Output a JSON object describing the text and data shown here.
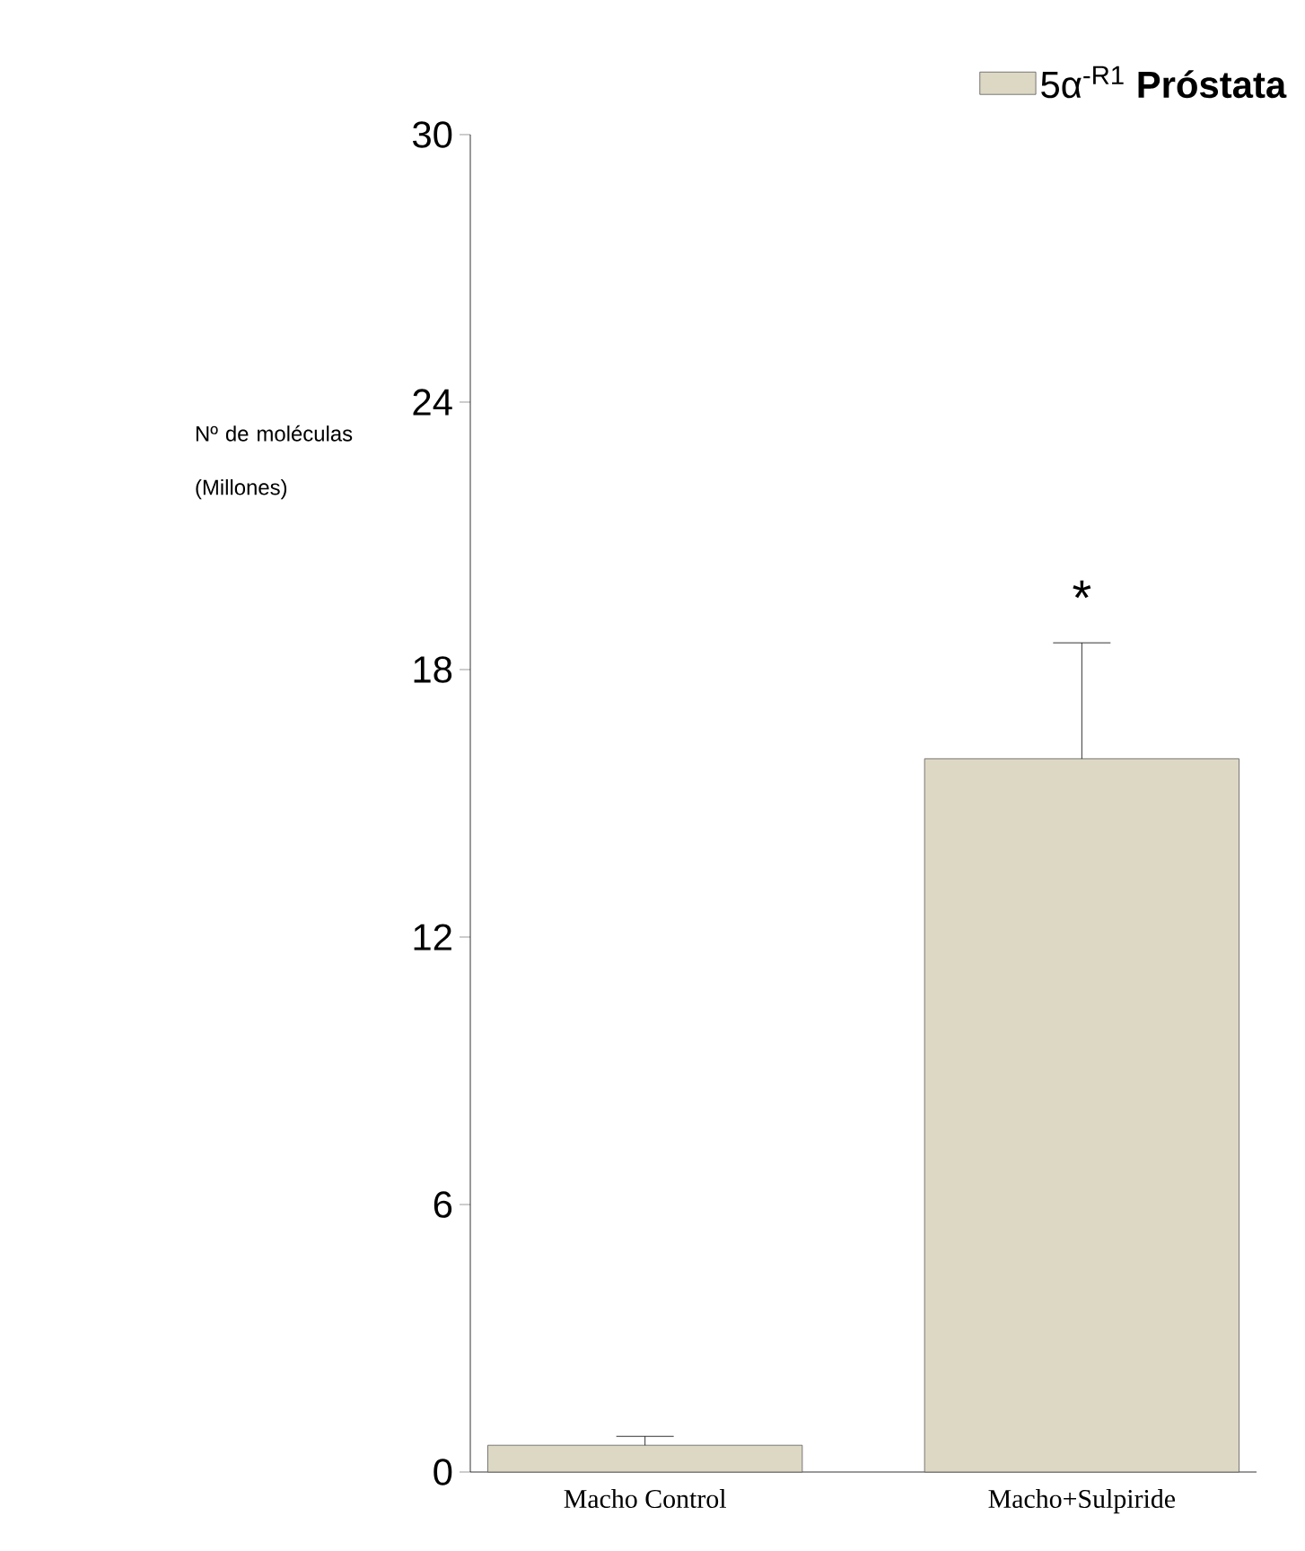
{
  "chart_data": {
    "type": "bar",
    "categories": [
      "Macho Control",
      "Macho+Sulpiride"
    ],
    "series": [
      {
        "name": "5α$^{-R1}$ **Próstata**",
        "color": "#ddd8c4",
        "values": [
          0.6,
          16.0
        ],
        "errors": [
          [
            0.6,
            0.8
          ],
          [
            16.0,
            18.6
          ]
        ]
      }
    ],
    "ylabel": "Nº de moléculas (Millones)",
    "ylim": [
      0,
      30
    ],
    "yticks": [
      0,
      6,
      12,
      18,
      24,
      30
    ],
    "annotations": [
      {
        "text": "*",
        "x": "Macho+Sulpiride",
        "y": 18.6
      }
    ],
    "legend": "top right",
    "grid": false
  }
}
